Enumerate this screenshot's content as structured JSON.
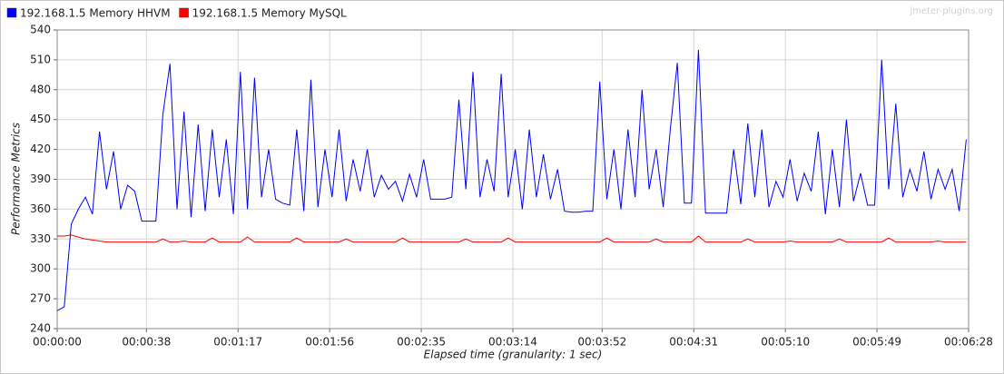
{
  "chart_data": {
    "type": "line",
    "watermark": "jmeter-plugins.org",
    "xlabel": "Elapsed time (granularity: 1 sec)",
    "ylabel": "Performance Metrics",
    "x": [
      0,
      3,
      6,
      9,
      12,
      15,
      18,
      21,
      24,
      27,
      30,
      33,
      36,
      39,
      42,
      45,
      48,
      51,
      54,
      57,
      60,
      63,
      66,
      69,
      72,
      75,
      78,
      81,
      84,
      87,
      90,
      93,
      96,
      99,
      102,
      105,
      108,
      111,
      114,
      117,
      120,
      123,
      126,
      129,
      132,
      135,
      138,
      141,
      144,
      147,
      150,
      153,
      156,
      159,
      162,
      165,
      168,
      171,
      174,
      177,
      180,
      183,
      186,
      189,
      192,
      195,
      198,
      201,
      204,
      207,
      210,
      213,
      216,
      219,
      222,
      225,
      228,
      231,
      234,
      237,
      240,
      243,
      246,
      249,
      252,
      255,
      258,
      261,
      264,
      267,
      270,
      273,
      276,
      279,
      282,
      285,
      288,
      291,
      294,
      297,
      300,
      303,
      306,
      309,
      312,
      315,
      318,
      321,
      324,
      327,
      330,
      333,
      336,
      339,
      342,
      345,
      348,
      351,
      354,
      357,
      360,
      363,
      366,
      369,
      372,
      375,
      378,
      381,
      384,
      387
    ],
    "series": [
      {
        "name": "192.168.1.5 Memory HHVM",
        "color": "#0000ff",
        "values": [
          258,
          262,
          345,
          360,
          372,
          355,
          438,
          380,
          418,
          360,
          384,
          378,
          348,
          348,
          348,
          455,
          506,
          360,
          458,
          352,
          445,
          358,
          440,
          372,
          430,
          355,
          498,
          360,
          492,
          372,
          420,
          370,
          366,
          364,
          440,
          358,
          490,
          362,
          420,
          372,
          440,
          368,
          410,
          378,
          420,
          372,
          394,
          380,
          388,
          368,
          395,
          372,
          410,
          370,
          370,
          370,
          372,
          470,
          380,
          498,
          372,
          410,
          378,
          496,
          372,
          420,
          360,
          440,
          372,
          415,
          370,
          400,
          358,
          357,
          357,
          358,
          358,
          488,
          370,
          420,
          360,
          440,
          372,
          480,
          380,
          420,
          362,
          440,
          507,
          366,
          366,
          520,
          356,
          356,
          356,
          356,
          420,
          365,
          446,
          372,
          440,
          362,
          388,
          372,
          410,
          368,
          396,
          378,
          438,
          355,
          420,
          362,
          450,
          368,
          396,
          364,
          364,
          510,
          380,
          466,
          372,
          400,
          378,
          418,
          370,
          400,
          380,
          400,
          358,
          430
        ]
      },
      {
        "name": "192.168.1.5 Memory MySQL",
        "color": "#ff0000",
        "values": [
          333,
          333,
          334,
          332,
          330,
          329,
          328,
          327,
          327,
          327,
          327,
          327,
          327,
          327,
          327,
          330,
          327,
          327,
          328,
          327,
          327,
          327,
          331,
          327,
          327,
          327,
          327,
          332,
          327,
          327,
          327,
          327,
          327,
          327,
          331,
          327,
          327,
          327,
          327,
          327,
          327,
          330,
          327,
          327,
          327,
          327,
          327,
          327,
          327,
          331,
          327,
          327,
          327,
          327,
          327,
          327,
          327,
          327,
          330,
          327,
          327,
          327,
          327,
          327,
          331,
          327,
          327,
          327,
          327,
          327,
          327,
          327,
          327,
          327,
          327,
          327,
          327,
          327,
          331,
          327,
          327,
          327,
          327,
          327,
          327,
          330,
          327,
          327,
          327,
          327,
          327,
          333,
          327,
          327,
          327,
          327,
          327,
          327,
          330,
          327,
          327,
          327,
          327,
          327,
          328,
          327,
          327,
          327,
          327,
          327,
          327,
          330,
          327,
          327,
          327,
          327,
          327,
          327,
          331,
          327,
          327,
          327,
          327,
          327,
          327,
          328,
          327,
          327,
          327,
          327
        ]
      }
    ],
    "xlim": [
      0,
      388
    ],
    "xticks": [
      {
        "value": 0,
        "label": "00:00:00"
      },
      {
        "value": 38,
        "label": "00:00:38"
      },
      {
        "value": 77,
        "label": "00:01:17"
      },
      {
        "value": 116,
        "label": "00:01:56"
      },
      {
        "value": 155,
        "label": "00:02:35"
      },
      {
        "value": 194,
        "label": "00:03:14"
      },
      {
        "value": 232,
        "label": "00:03:52"
      },
      {
        "value": 271,
        "label": "00:04:31"
      },
      {
        "value": 310,
        "label": "00:05:10"
      },
      {
        "value": 349,
        "label": "00:05:49"
      },
      {
        "value": 388,
        "label": "00:06:28"
      }
    ],
    "ylim": [
      240,
      540
    ],
    "yticks": [
      240,
      270,
      300,
      330,
      360,
      390,
      420,
      450,
      480,
      510,
      540
    ],
    "grid": true,
    "legend": "top-left"
  }
}
